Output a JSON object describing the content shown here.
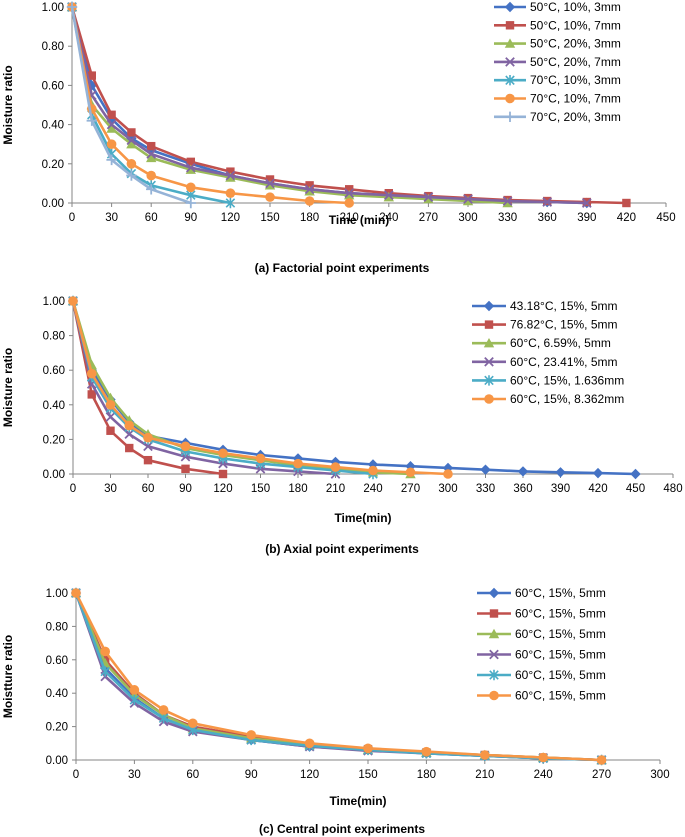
{
  "chart_data": [
    {
      "type": "line",
      "caption": "(a) Factorial point experiments",
      "xlabel": "Time (min)",
      "ylabel": "Moisture ratio",
      "xlim": [
        0,
        450
      ],
      "ylim": [
        0,
        1
      ],
      "xticks": [
        "0",
        "30",
        "60",
        "90",
        "120",
        "150",
        "180",
        "210",
        "240",
        "270",
        "300",
        "330",
        "360",
        "390",
        "420",
        "450"
      ],
      "yticks": [
        "0.00",
        "0.20",
        "0.40",
        "0.60",
        "0.80",
        "1.00"
      ],
      "legend_position": "top-right",
      "series": [
        {
          "name": "50°C, 10%, 3mm",
          "color": "#4472C4",
          "marker": "diamond",
          "x": [
            0,
            15,
            30,
            45,
            60,
            90,
            120,
            150,
            180,
            210,
            240,
            270,
            300,
            330,
            360,
            390
          ],
          "y": [
            1.0,
            0.6,
            0.43,
            0.33,
            0.27,
            0.2,
            0.14,
            0.1,
            0.07,
            0.05,
            0.04,
            0.03,
            0.02,
            0.01,
            0.005,
            0.0
          ]
        },
        {
          "name": "50°C, 10%, 7mm",
          "color": "#C0504D",
          "marker": "square",
          "x": [
            0,
            15,
            30,
            45,
            60,
            90,
            120,
            150,
            180,
            210,
            240,
            270,
            300,
            330,
            360,
            390,
            420
          ],
          "y": [
            1.0,
            0.65,
            0.45,
            0.36,
            0.29,
            0.21,
            0.16,
            0.12,
            0.09,
            0.07,
            0.05,
            0.035,
            0.025,
            0.015,
            0.01,
            0.005,
            0.0
          ]
        },
        {
          "name": "50°C, 20%, 3mm",
          "color": "#9BBB59",
          "marker": "triangle",
          "x": [
            0,
            15,
            30,
            45,
            60,
            90,
            120,
            150,
            180,
            210,
            240,
            270,
            300,
            330
          ],
          "y": [
            1.0,
            0.5,
            0.38,
            0.3,
            0.23,
            0.17,
            0.13,
            0.09,
            0.06,
            0.04,
            0.03,
            0.02,
            0.01,
            0.0
          ]
        },
        {
          "name": "50°C, 20%, 7mm",
          "color": "#8064A2",
          "marker": "x",
          "x": [
            0,
            15,
            30,
            45,
            60,
            90,
            120,
            150,
            180,
            210,
            240,
            270,
            300,
            330,
            360,
            390
          ],
          "y": [
            1.0,
            0.55,
            0.4,
            0.32,
            0.25,
            0.18,
            0.14,
            0.1,
            0.07,
            0.05,
            0.04,
            0.03,
            0.02,
            0.01,
            0.005,
            0.0
          ]
        },
        {
          "name": "70°C, 10%, 3mm",
          "color": "#4BACC6",
          "marker": "star",
          "x": [
            0,
            15,
            30,
            45,
            60,
            90,
            120
          ],
          "y": [
            1.0,
            0.45,
            0.25,
            0.15,
            0.09,
            0.04,
            0.0
          ]
        },
        {
          "name": "70°C, 10%, 7mm",
          "color": "#F79646",
          "marker": "circle",
          "x": [
            0,
            15,
            30,
            45,
            60,
            90,
            120,
            150,
            180,
            210
          ],
          "y": [
            1.0,
            0.48,
            0.3,
            0.2,
            0.14,
            0.08,
            0.05,
            0.03,
            0.01,
            0.0
          ]
        },
        {
          "name": "70°C, 20%, 3mm",
          "color": "#95B3D7",
          "marker": "plus",
          "x": [
            0,
            15,
            30,
            45,
            60,
            90
          ],
          "y": [
            1.0,
            0.42,
            0.22,
            0.14,
            0.07,
            0.0
          ]
        }
      ]
    },
    {
      "type": "line",
      "caption": "(b) Axial point experiments",
      "xlabel": "Time(min)",
      "ylabel": "Moisture ratio",
      "xlim": [
        0,
        480
      ],
      "ylim": [
        0,
        1
      ],
      "xticks": [
        "0",
        "30",
        "60",
        "90",
        "120",
        "150",
        "180",
        "210",
        "240",
        "270",
        "300",
        "330",
        "360",
        "390",
        "420",
        "450",
        "480"
      ],
      "yticks": [
        "0.00",
        "0.20",
        "0.40",
        "0.60",
        "0.80",
        "1.00"
      ],
      "legend_position": "top-right",
      "series": [
        {
          "name": "43.18°C, 15%, 5mm",
          "color": "#4472C4",
          "marker": "diamond",
          "x": [
            0,
            15,
            30,
            45,
            60,
            90,
            120,
            150,
            180,
            210,
            240,
            270,
            300,
            330,
            360,
            390,
            420,
            450
          ],
          "y": [
            1.0,
            0.6,
            0.43,
            0.3,
            0.22,
            0.18,
            0.14,
            0.11,
            0.09,
            0.07,
            0.055,
            0.045,
            0.035,
            0.025,
            0.015,
            0.01,
            0.005,
            0.0
          ]
        },
        {
          "name": "76.82°C, 15%, 5mm",
          "color": "#C0504D",
          "marker": "square",
          "x": [
            0,
            15,
            30,
            45,
            60,
            90,
            120
          ],
          "y": [
            1.0,
            0.46,
            0.25,
            0.15,
            0.08,
            0.03,
            0.0
          ]
        },
        {
          "name": "60°C, 6.59%, 5mm",
          "color": "#9BBB59",
          "marker": "triangle",
          "x": [
            0,
            15,
            30,
            45,
            60,
            90,
            120,
            150,
            180,
            210,
            240,
            270
          ],
          "y": [
            1.0,
            0.63,
            0.44,
            0.31,
            0.23,
            0.15,
            0.11,
            0.08,
            0.05,
            0.03,
            0.01,
            0.0
          ]
        },
        {
          "name": "60°C, 23.41%, 5mm",
          "color": "#8064A2",
          "marker": "x",
          "x": [
            0,
            15,
            30,
            45,
            60,
            90,
            120,
            150,
            180,
            210
          ],
          "y": [
            1.0,
            0.52,
            0.33,
            0.23,
            0.16,
            0.1,
            0.06,
            0.03,
            0.015,
            0.0
          ]
        },
        {
          "name": " 60°C, 15%, 1.636mm",
          "color": "#4BACC6",
          "marker": "star",
          "x": [
            0,
            15,
            30,
            45,
            60,
            90,
            120,
            150,
            180,
            210,
            240
          ],
          "y": [
            1.0,
            0.56,
            0.38,
            0.27,
            0.2,
            0.13,
            0.09,
            0.06,
            0.04,
            0.02,
            0.0
          ]
        },
        {
          "name": "60°C, 15%, 8.362mm",
          "color": "#F79646",
          "marker": "circle",
          "x": [
            0,
            15,
            30,
            45,
            60,
            90,
            120,
            150,
            180,
            210,
            240,
            270,
            300
          ],
          "y": [
            1.0,
            0.58,
            0.4,
            0.28,
            0.21,
            0.16,
            0.12,
            0.09,
            0.06,
            0.04,
            0.02,
            0.01,
            0.0
          ]
        }
      ]
    },
    {
      "type": "line",
      "caption": "(c) Central point experiments",
      "xlabel": "Time(min)",
      "ylabel": "Moistture ratio",
      "xlim": [
        0,
        300
      ],
      "ylim": [
        0,
        1
      ],
      "xticks": [
        "0",
        "30",
        "60",
        "90",
        "120",
        "150",
        "180",
        "210",
        "240",
        "270",
        "300"
      ],
      "yticks": [
        "0.00",
        "0.20",
        "0.40",
        "0.60",
        "0.80",
        "1.00"
      ],
      "legend_position": "top-right",
      "series": [
        {
          "name": "60°C, 15%, 5mm",
          "color": "#4472C4",
          "marker": "diamond",
          "x": [
            0,
            15,
            30,
            45,
            60,
            90,
            120,
            150,
            180,
            210,
            240,
            270
          ],
          "y": [
            1.0,
            0.55,
            0.37,
            0.25,
            0.18,
            0.12,
            0.08,
            0.06,
            0.04,
            0.025,
            0.01,
            0.0
          ]
        },
        {
          "name": "60°C, 15%, 5mm",
          "color": "#C0504D",
          "marker": "square",
          "x": [
            0,
            15,
            30,
            45,
            60,
            90,
            120,
            150,
            180,
            210,
            240,
            270
          ],
          "y": [
            1.0,
            0.6,
            0.4,
            0.27,
            0.2,
            0.14,
            0.09,
            0.065,
            0.045,
            0.03,
            0.015,
            0.0
          ]
        },
        {
          "name": "60°C, 15%, 5mm",
          "color": "#9BBB59",
          "marker": "triangle",
          "x": [
            0,
            15,
            30,
            45,
            60,
            90,
            120,
            150,
            180,
            210,
            240,
            270
          ],
          "y": [
            1.0,
            0.58,
            0.39,
            0.27,
            0.19,
            0.13,
            0.09,
            0.06,
            0.045,
            0.03,
            0.015,
            0.0
          ]
        },
        {
          "name": "60°C, 15%, 5mm",
          "color": "#8064A2",
          "marker": "x",
          "x": [
            0,
            15,
            30,
            45,
            60,
            90,
            120,
            150,
            180,
            210,
            240,
            270
          ],
          "y": [
            1.0,
            0.5,
            0.34,
            0.23,
            0.17,
            0.12,
            0.08,
            0.055,
            0.04,
            0.025,
            0.01,
            0.0
          ]
        },
        {
          "name": "60°C, 15%, 5mm",
          "color": "#4BACC6",
          "marker": "star",
          "x": [
            0,
            15,
            30,
            45,
            60,
            90,
            120,
            150,
            180,
            210,
            240,
            270
          ],
          "y": [
            1.0,
            0.53,
            0.36,
            0.25,
            0.18,
            0.12,
            0.085,
            0.06,
            0.04,
            0.025,
            0.01,
            0.0
          ]
        },
        {
          "name": "60°C, 15%, 5mm",
          "color": "#F79646",
          "marker": "circle",
          "x": [
            0,
            15,
            30,
            45,
            60,
            90,
            120,
            150,
            180,
            210,
            240,
            270
          ],
          "y": [
            1.0,
            0.65,
            0.42,
            0.3,
            0.22,
            0.15,
            0.1,
            0.07,
            0.05,
            0.03,
            0.015,
            0.0
          ]
        }
      ]
    }
  ]
}
